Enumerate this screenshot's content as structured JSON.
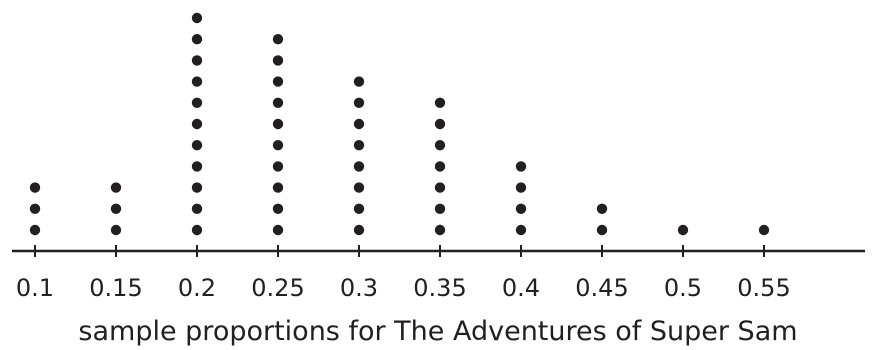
{
  "chart_data": {
    "type": "scatter",
    "subtype": "dot-plot",
    "title": "",
    "xlabel": "sample proportions for The Adventures of Super Sam",
    "ylabel": "",
    "x": [
      0.1,
      0.15,
      0.2,
      0.25,
      0.3,
      0.35,
      0.4,
      0.45,
      0.5,
      0.55
    ],
    "tick_labels": [
      "0.1",
      "0.15",
      "0.2",
      "0.25",
      "0.3",
      "0.35",
      "0.4",
      "0.45",
      "0.5",
      "0.55"
    ],
    "counts": [
      3,
      3,
      11,
      10,
      8,
      7,
      4,
      2,
      1,
      1
    ],
    "xlim": [
      0.075,
      0.57
    ],
    "grid": false,
    "colors": {
      "dot": "#231f20",
      "axis": "#231f20"
    }
  }
}
